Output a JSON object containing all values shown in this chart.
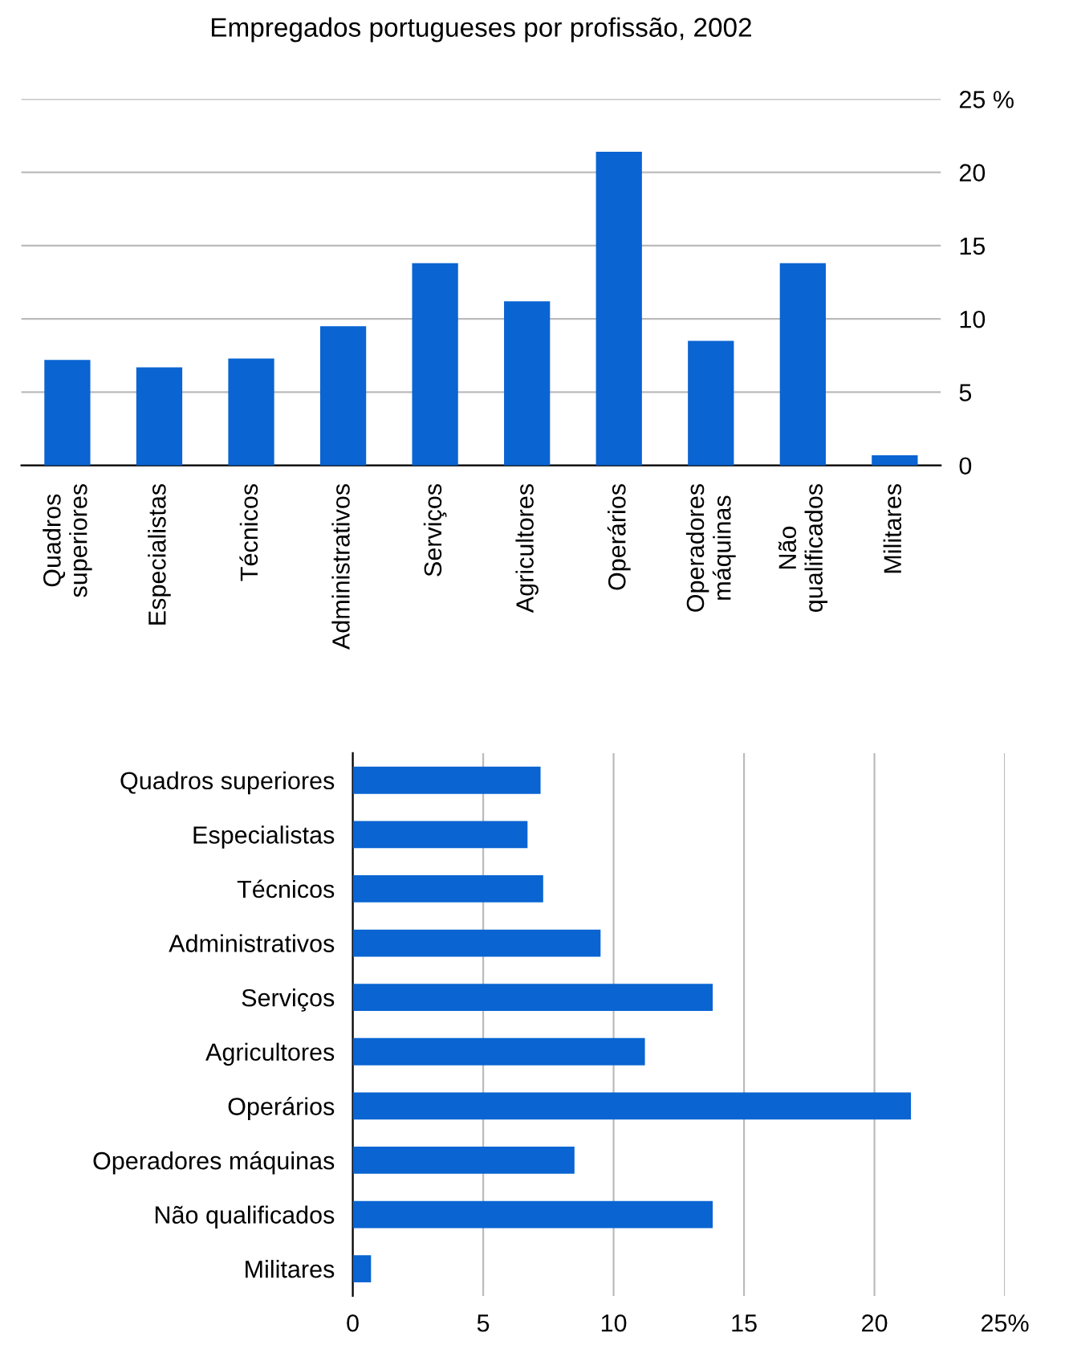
{
  "chart_data": [
    {
      "type": "bar",
      "title": "Empregados portugueses por profissão, 2002",
      "categories": [
        "Quadros\nsuperiores",
        "Especialistas",
        "Técnicos",
        "Administrativos",
        "Serviços",
        "Agricultores",
        "Operários",
        "Operadores\nmáquinas",
        "Não\nqualificados",
        "Militares"
      ],
      "values": [
        7.2,
        6.7,
        7.3,
        9.5,
        13.8,
        11.2,
        21.4,
        8.5,
        13.8,
        0.7
      ],
      "color": "#0a64d2",
      "ylim": [
        0,
        25
      ],
      "yticks": [
        0,
        5,
        10,
        15,
        20,
        {
          "value": 25,
          "label": "25 %"
        }
      ],
      "grid": "y"
    },
    {
      "type": "bar",
      "orientation": "horizontal",
      "categories": [
        "Quadros superiores",
        "Especialistas",
        "Técnicos",
        "Administrativos",
        "Serviços",
        "Agricultores",
        "Operários",
        "Operadores máquinas",
        "Não qualificados",
        "Militares"
      ],
      "values": [
        7.2,
        6.7,
        7.3,
        9.5,
        13.8,
        11.2,
        21.4,
        8.5,
        13.8,
        0.7
      ],
      "color": "#0a64d2",
      "xlim": [
        0,
        25
      ],
      "xticks": [
        0,
        5,
        10,
        15,
        20,
        {
          "value": 25,
          "label": "25%"
        }
      ],
      "grid": "x"
    }
  ]
}
